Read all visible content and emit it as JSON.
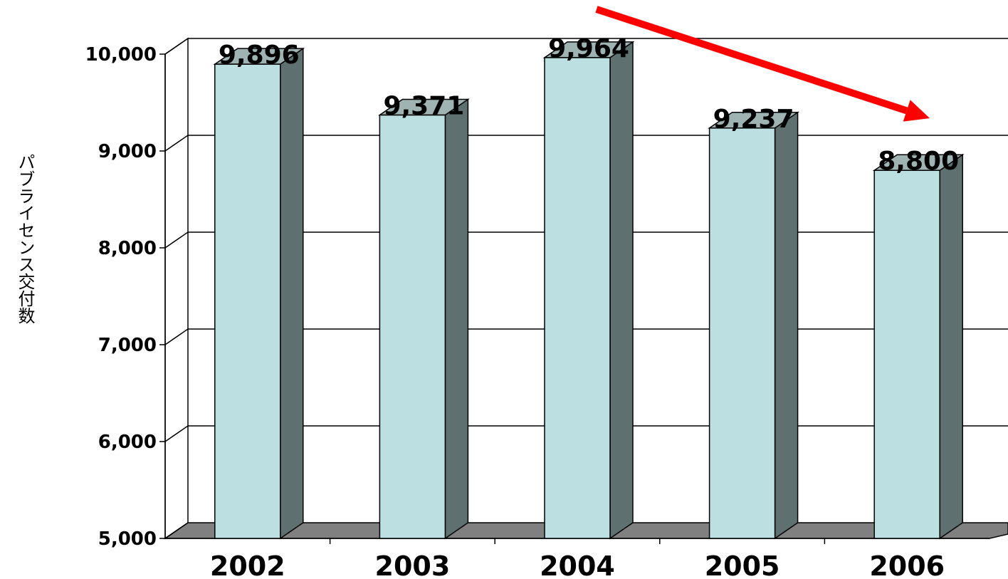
{
  "chart_data": {
    "type": "bar",
    "categories": [
      "2002",
      "2003",
      "2004",
      "2005",
      "2006"
    ],
    "values": [
      9896,
      9371,
      9964,
      9237,
      8800
    ],
    "data_labels": [
      "9,896",
      "9,371",
      "9,964",
      "9,237",
      "8,800"
    ],
    "ylabel": "パブライセンス交付数",
    "xlabel": "",
    "title": "",
    "ylim": [
      5000,
      10000
    ],
    "yticks": [
      "5,000",
      "6,000",
      "7,000",
      "8,000",
      "9,000",
      "10,000"
    ],
    "grid": true,
    "three_d": true,
    "annotations": [
      {
        "type": "arrow",
        "meaning": "downward trend"
      }
    ],
    "colors": {
      "bar_front": "#bce0e2",
      "bar_side": "#5f7070",
      "bar_top": "#9fb3b3",
      "floor": "#808080",
      "arrow": "#ff0000"
    }
  }
}
